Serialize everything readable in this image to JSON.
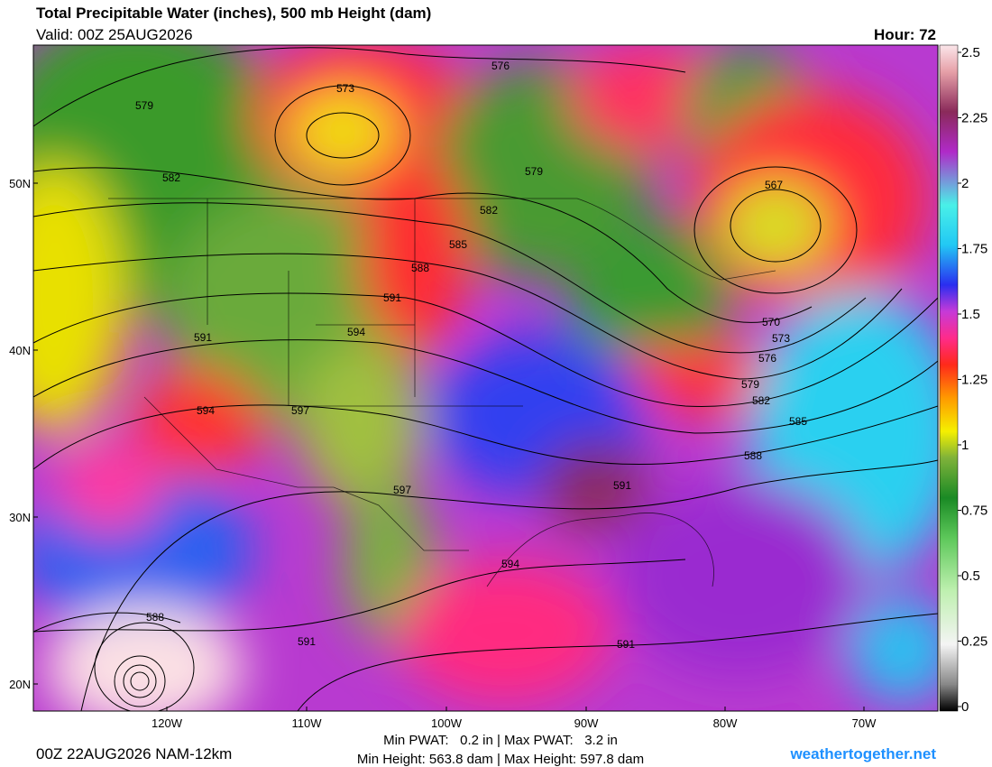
{
  "header": {
    "title": "Total Precipitable Water (inches), 500 mb Height (dam)",
    "valid": "Valid: 00Z 25AUG2026",
    "hour": "Hour: 72"
  },
  "latitudes": [
    "50N",
    "40N",
    "30N",
    "20N"
  ],
  "longitudes": [
    "120W",
    "110W",
    "100W",
    "90W",
    "80W",
    "70W"
  ],
  "colorbar": {
    "ticks": [
      0,
      0.25,
      0.5,
      0.75,
      1,
      1.25,
      1.5,
      1.75,
      2,
      2.25,
      2.5
    ]
  },
  "contour_labels": [
    "579",
    "573",
    "576",
    "582",
    "579",
    "567",
    "582",
    "585",
    "588",
    "591",
    "594",
    "591",
    "594",
    "597",
    "597",
    "591",
    "570",
    "573",
    "576",
    "579",
    "582",
    "585",
    "588",
    "594",
    "588",
    "591",
    "591"
  ],
  "footer": {
    "run": "00Z 22AUG2026 NAM-12km",
    "pwat": "Min PWAT:   0.2 in | Max PWAT:   3.2 in",
    "height": "Min Height: 563.8 dam | Max Height: 597.8 dam",
    "site": "weathertogether.net"
  }
}
